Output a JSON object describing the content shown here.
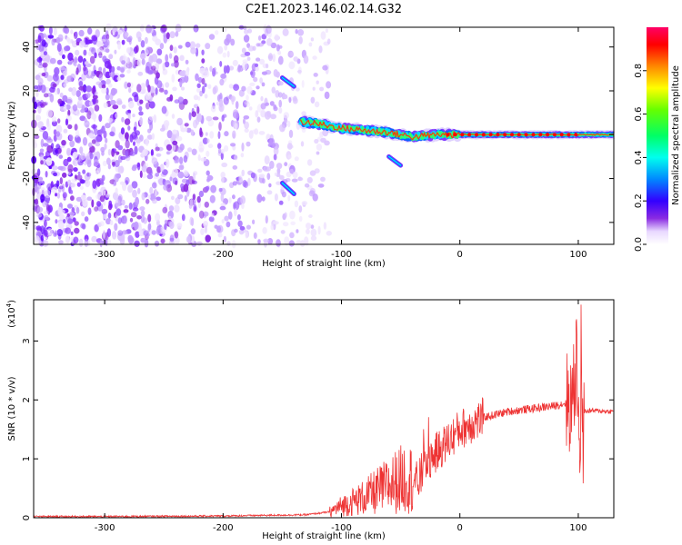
{
  "title": "C2E1.2023.146.02.14.G32",
  "chart_data": [
    {
      "type": "heatmap",
      "xlabel": "Height of straight line (km)",
      "ylabel": "Frequency (Hz)",
      "xlim": [
        -360,
        130
      ],
      "ylim": [
        -50,
        49
      ],
      "xticks": [
        -300,
        -200,
        -100,
        0,
        100
      ],
      "yticks": [
        -40,
        -20,
        0,
        20,
        40
      ],
      "colorbar": {
        "label": "Normalized spectral amplitude",
        "range": [
          0,
          1
        ],
        "ticks": [
          0.0,
          0.2,
          0.4,
          0.6,
          0.8
        ]
      },
      "description_points": {
        "noise_region_x": [
          -360,
          -120
        ],
        "signal_ridge": {
          "x": [
            -135,
            -120,
            -100,
            -80,
            -60,
            -40,
            -20,
            0,
            20,
            40,
            60,
            80,
            100,
            130
          ],
          "freq": [
            6,
            5,
            3,
            2,
            1,
            -1,
            0,
            0,
            0,
            0,
            0,
            0,
            0,
            0
          ]
        },
        "branches": [
          {
            "x": [
              -150,
              -140
            ],
            "freq": [
              26,
              22
            ]
          },
          {
            "x": [
              -150,
              -140
            ],
            "freq": [
              -22,
              -27
            ]
          },
          {
            "x": [
              -60,
              -50
            ],
            "freq": [
              -10,
              -14
            ]
          }
        ]
      }
    },
    {
      "type": "line",
      "xlabel": "Height of straight line (km)",
      "ylabel": "SNR (10 * v/v)",
      "multiplier_label": "(x10",
      "multiplier_exp": "4",
      "xlim": [
        -360,
        130
      ],
      "ylim": [
        0,
        3.7
      ],
      "xticks": [
        -300,
        -200,
        -100,
        0,
        100
      ],
      "yticks": [
        0,
        1,
        2,
        3
      ],
      "series": [
        {
          "color": "#ee3333",
          "x": [
            -360,
            -300,
            -200,
            -130,
            -110,
            -100,
            -80,
            -60,
            -45,
            -35,
            -30,
            -20,
            -10,
            0,
            20,
            40,
            60,
            80,
            90,
            95,
            100,
            102,
            105,
            110,
            130
          ],
          "y": [
            0.02,
            0.02,
            0.03,
            0.05,
            0.1,
            0.2,
            0.35,
            0.55,
            0.7,
            0.6,
            0.9,
            1.1,
            1.3,
            1.5,
            1.7,
            1.8,
            1.85,
            1.9,
            1.95,
            2.0,
            2.5,
            0.6,
            1.8,
            1.82,
            1.8
          ]
        }
      ]
    }
  ]
}
